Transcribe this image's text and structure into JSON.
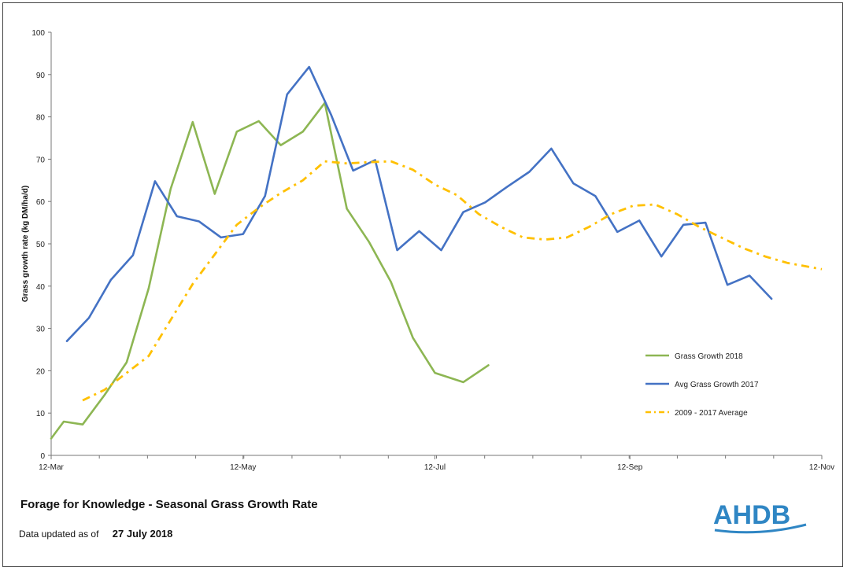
{
  "footer": {
    "title": "Forage for Knowledge -  Seasonal Grass Growth Rate",
    "updated_label": "Data updated as of",
    "updated_value": "27 July 2018"
  },
  "logo": {
    "text": "AHDB"
  },
  "colors": {
    "grass2018": "#8db653",
    "avg2017": "#4472c4",
    "longavg": "#ffc000",
    "logo": "#2f86c4"
  },
  "chart_data": {
    "type": "line",
    "title": "Forage for Knowledge -  Seasonal Grass Growth Rate",
    "xlabel": "",
    "ylabel": "Grass growth rate (kg DM/ha/d)",
    "ylim": [
      0,
      100
    ],
    "yticks": [
      0,
      10,
      20,
      30,
      40,
      50,
      60,
      70,
      80,
      90,
      100
    ],
    "xlim": [
      "2018-03-12",
      "2018-11-12"
    ],
    "xticks": [
      {
        "date": "2018-03-12",
        "label": "12-Mar"
      },
      {
        "date": "2018-05-12",
        "label": "12-May"
      },
      {
        "date": "2018-07-12",
        "label": "12-Jul"
      },
      {
        "date": "2018-09-12",
        "label": "12-Sep"
      },
      {
        "date": "2018-11-12",
        "label": "12-Nov"
      }
    ],
    "grid": false,
    "legend": "bottom-right",
    "series": [
      {
        "name": "Grass Growth 2018",
        "color": "#8db653",
        "style": "solid",
        "points": [
          [
            "2018-03-12",
            4
          ],
          [
            "2018-03-16",
            8
          ],
          [
            "2018-03-22",
            7.3
          ],
          [
            "2018-03-29",
            14.3
          ],
          [
            "2018-04-05",
            22
          ],
          [
            "2018-04-12",
            39.5
          ],
          [
            "2018-04-19",
            63
          ],
          [
            "2018-04-26",
            78.8
          ],
          [
            "2018-05-03",
            61.8
          ],
          [
            "2018-05-10",
            76.5
          ],
          [
            "2018-05-17",
            79
          ],
          [
            "2018-05-24",
            73.3
          ],
          [
            "2018-05-31",
            76.5
          ],
          [
            "2018-06-07",
            83.3
          ],
          [
            "2018-06-14",
            58.3
          ],
          [
            "2018-06-21",
            50.5
          ],
          [
            "2018-06-28",
            41
          ],
          [
            "2018-07-05",
            27.8
          ],
          [
            "2018-07-12",
            19.5
          ],
          [
            "2018-07-21",
            17.3
          ],
          [
            "2018-07-29",
            21.3
          ]
        ]
      },
      {
        "name": "Avg Grass Growth 2017",
        "color": "#4472c4",
        "style": "solid",
        "points": [
          [
            "2018-03-17",
            27
          ],
          [
            "2018-03-24",
            32.5
          ],
          [
            "2018-03-31",
            41.5
          ],
          [
            "2018-04-07",
            47.3
          ],
          [
            "2018-04-14",
            64.8
          ],
          [
            "2018-04-21",
            56.5
          ],
          [
            "2018-04-28",
            55.3
          ],
          [
            "2018-05-05",
            51.5
          ],
          [
            "2018-05-12",
            52.3
          ],
          [
            "2018-05-19",
            61.3
          ],
          [
            "2018-05-26",
            85.3
          ],
          [
            "2018-06-02",
            91.8
          ],
          [
            "2018-06-09",
            80.5
          ],
          [
            "2018-06-16",
            67.3
          ],
          [
            "2018-06-23",
            69.8
          ],
          [
            "2018-06-30",
            48.5
          ],
          [
            "2018-07-07",
            53
          ],
          [
            "2018-07-14",
            48.5
          ],
          [
            "2018-07-21",
            57.5
          ],
          [
            "2018-07-28",
            59.8
          ],
          [
            "2018-08-04",
            63.5
          ],
          [
            "2018-08-11",
            67
          ],
          [
            "2018-08-18",
            72.5
          ],
          [
            "2018-08-25",
            64.3
          ],
          [
            "2018-09-01",
            61.3
          ],
          [
            "2018-09-08",
            52.8
          ],
          [
            "2018-09-15",
            55.5
          ],
          [
            "2018-09-22",
            47
          ],
          [
            "2018-09-29",
            54.5
          ],
          [
            "2018-10-06",
            55
          ],
          [
            "2018-10-13",
            40.3
          ],
          [
            "2018-10-20",
            42.5
          ],
          [
            "2018-10-27",
            37
          ]
        ]
      },
      {
        "name": "2009 - 2017 Average",
        "color": "#ffc000",
        "style": "dashdot",
        "points": [
          [
            "2018-03-22",
            13
          ],
          [
            "2018-03-29",
            15.5
          ],
          [
            "2018-04-05",
            19.5
          ],
          [
            "2018-04-12",
            23.5
          ],
          [
            "2018-04-19",
            32
          ],
          [
            "2018-04-26",
            40.5
          ],
          [
            "2018-05-03",
            47.5
          ],
          [
            "2018-05-10",
            54.5
          ],
          [
            "2018-05-17",
            58.5
          ],
          [
            "2018-05-24",
            62
          ],
          [
            "2018-05-31",
            65
          ],
          [
            "2018-06-07",
            69.5
          ],
          [
            "2018-06-14",
            69
          ],
          [
            "2018-06-21",
            69.3
          ],
          [
            "2018-06-28",
            69.5
          ],
          [
            "2018-07-05",
            67.5
          ],
          [
            "2018-07-12",
            64
          ],
          [
            "2018-07-19",
            61.5
          ],
          [
            "2018-07-26",
            57
          ],
          [
            "2018-08-02",
            54
          ],
          [
            "2018-08-09",
            51.5
          ],
          [
            "2018-08-16",
            51
          ],
          [
            "2018-08-23",
            51.5
          ],
          [
            "2018-08-30",
            54
          ],
          [
            "2018-09-06",
            57
          ],
          [
            "2018-09-13",
            59
          ],
          [
            "2018-09-20",
            59.3
          ],
          [
            "2018-09-27",
            57
          ],
          [
            "2018-10-04",
            54
          ],
          [
            "2018-10-11",
            51.5
          ],
          [
            "2018-10-18",
            49
          ],
          [
            "2018-10-25",
            47
          ],
          [
            "2018-11-01",
            45.5
          ],
          [
            "2018-11-12",
            44
          ]
        ]
      }
    ]
  }
}
